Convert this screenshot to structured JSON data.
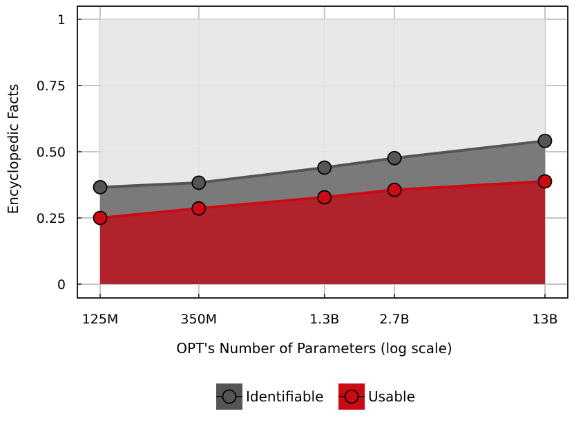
{
  "chart_data": {
    "type": "area",
    "x_scale": "log",
    "x": [
      125000000,
      350000000,
      1300000000,
      2700000000,
      13000000000
    ],
    "x_tick_labels": [
      "125M",
      "350M",
      "1.3B",
      "2.7B",
      "13B"
    ],
    "y_ticks": [
      0,
      0.25,
      0.5,
      0.75,
      1
    ],
    "y_tick_labels": [
      "0",
      "0.25",
      "0.50",
      "0.75",
      "1"
    ],
    "ylim": [
      0,
      1
    ],
    "xlabel": "OPT's Number of Parameters (log scale)",
    "ylabel": "Encyclopedic Facts",
    "grid": true,
    "legend_position": "bottom",
    "series": [
      {
        "name": "Identifiable",
        "values": [
          0.366,
          0.383,
          0.44,
          0.476,
          0.541
        ],
        "line_color": "#555555",
        "fill_color": "#7a7a7a"
      },
      {
        "name": "Usable",
        "values": [
          0.25,
          0.286,
          0.328,
          0.356,
          0.388
        ],
        "line_color": "#cc0a14",
        "fill_color": "#b0232d"
      }
    ],
    "background_fill_color": "#e6e6e6"
  }
}
